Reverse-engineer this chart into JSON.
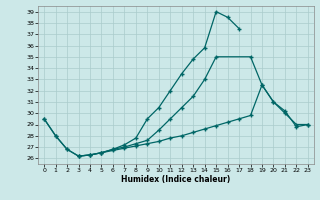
{
  "xlabel": "Humidex (Indice chaleur)",
  "bg_color": "#cce8e8",
  "grid_color": "#aacccc",
  "line_color": "#006666",
  "xlim": [
    -0.5,
    23.5
  ],
  "ylim": [
    25.5,
    39.5
  ],
  "xticks": [
    0,
    1,
    2,
    3,
    4,
    5,
    6,
    7,
    8,
    9,
    10,
    11,
    12,
    13,
    14,
    15,
    16,
    17,
    18,
    19,
    20,
    21,
    22,
    23
  ],
  "yticks": [
    26,
    27,
    28,
    29,
    30,
    31,
    32,
    33,
    34,
    35,
    36,
    37,
    38,
    39
  ],
  "line1_x": [
    0,
    1,
    2,
    3,
    4,
    5,
    6,
    7,
    8,
    9,
    10,
    11,
    12,
    13,
    14,
    15,
    16,
    17
  ],
  "line1_y": [
    29.5,
    28.0,
    26.8,
    26.2,
    26.3,
    26.5,
    26.8,
    27.2,
    27.8,
    29.5,
    30.5,
    32.0,
    33.5,
    34.8,
    35.8,
    39.0,
    38.5,
    37.5
  ],
  "line2_x": [
    3,
    4,
    5,
    6,
    7,
    8,
    9,
    10,
    11,
    12,
    13,
    14,
    15,
    18,
    19,
    20,
    21,
    22,
    23
  ],
  "line2_y": [
    26.2,
    26.3,
    26.5,
    26.8,
    27.0,
    27.3,
    27.6,
    28.5,
    29.5,
    30.5,
    31.5,
    33.0,
    35.0,
    35.0,
    32.5,
    31.0,
    30.0,
    29.0,
    29.0
  ],
  "line3_x": [
    0,
    1,
    2,
    3,
    4,
    5,
    6,
    7,
    8,
    9,
    10,
    11,
    12,
    13,
    14,
    15,
    16,
    17,
    18,
    19,
    20,
    21,
    22,
    23
  ],
  "line3_y": [
    29.5,
    28.0,
    26.8,
    26.2,
    26.3,
    26.5,
    26.7,
    26.9,
    27.1,
    27.3,
    27.5,
    27.8,
    28.0,
    28.3,
    28.6,
    28.9,
    29.2,
    29.5,
    29.8,
    32.5,
    31.0,
    30.2,
    28.8,
    29.0
  ]
}
